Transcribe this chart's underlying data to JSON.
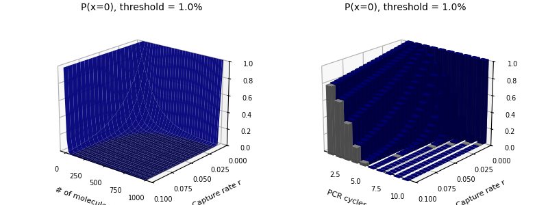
{
  "title": "P(x=0), threshold = 1.0%",
  "threshold": 0.01,
  "r_values_count": 21,
  "r_min": 0.0,
  "r_max": 0.1,
  "pcr_cycles": [
    1,
    2,
    3,
    4,
    5,
    6,
    7,
    8,
    9,
    10
  ],
  "bar_color": "#00008B",
  "threshold_bar_color": "#A9A9A9",
  "xlabel1": "# of molecules",
  "ylabel1": "Capture rate r",
  "xlabel2": "PCR cycles",
  "ylabel2": "Capture rate r",
  "zlim": [
    0.0,
    1.0
  ],
  "zticks": [
    0.0,
    0.2,
    0.4,
    0.6,
    0.8,
    1.0
  ],
  "r_ticks": [
    0.0,
    0.025,
    0.05,
    0.075,
    0.1
  ],
  "mol_ticks": [
    0,
    250,
    500,
    750,
    1000
  ],
  "pcr_ticks": [
    2.5,
    5.0,
    7.5,
    10.0
  ],
  "elev": 20,
  "azim": -50,
  "figsize": [
    8.0,
    3.0
  ],
  "dpi": 100
}
